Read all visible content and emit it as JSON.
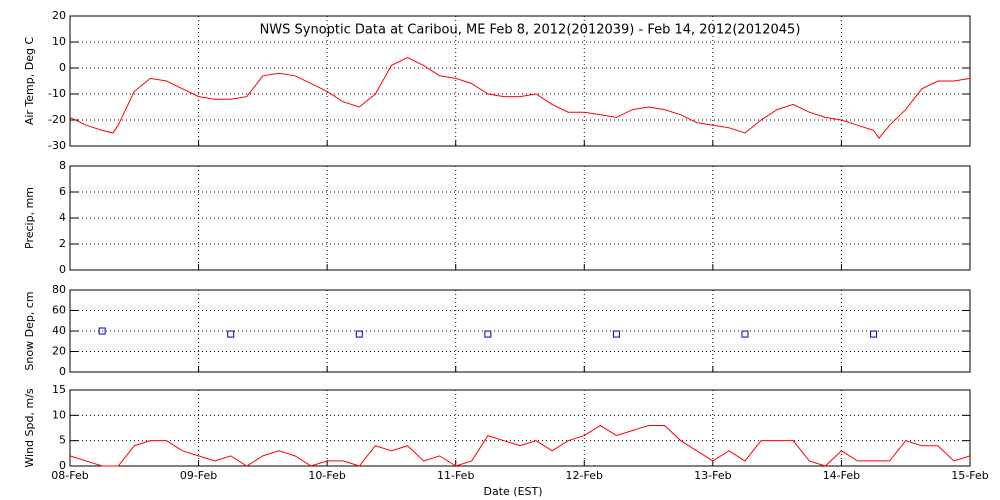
{
  "chart_data": [
    {
      "type": "line",
      "title": "NWS Synoptic Data at Caribou, ME   Feb  8, 2012(2012039) - Feb 14, 2012(2012045)",
      "ylabel": "Air Temp, Deg C",
      "ylim": [
        -30,
        20
      ],
      "yticks": [
        -30,
        -20,
        -10,
        0,
        10,
        20
      ],
      "xlim": [
        0,
        168
      ],
      "grid": true,
      "series": [
        {
          "color": "#ff0000",
          "x": [
            0,
            3,
            6,
            8,
            9,
            12,
            15,
            18,
            21,
            24,
            27,
            30,
            33,
            36,
            39,
            42,
            45,
            48,
            51,
            54,
            57,
            60,
            63,
            66,
            69,
            72,
            75,
            78,
            81,
            84,
            87,
            90,
            93,
            96,
            99,
            102,
            105,
            108,
            111,
            114,
            117,
            120,
            123,
            126,
            129,
            132,
            135,
            138,
            141,
            144,
            147,
            150,
            151,
            153,
            156,
            159,
            162,
            165,
            168
          ],
          "values": [
            -19,
            -22,
            -24,
            -25,
            -22,
            -9,
            -4,
            -5,
            -8,
            -11,
            -12,
            -12,
            -11,
            -3,
            -2,
            -3,
            -6,
            -9,
            -13,
            -15,
            -10,
            1,
            4,
            1,
            -3,
            -4,
            -6,
            -10,
            -11,
            -11,
            -10,
            -14,
            -17,
            -17,
            -18,
            -19,
            -16,
            -15,
            -16,
            -18,
            -21,
            -22,
            -23,
            -25,
            -20,
            -16,
            -14,
            -17,
            -19,
            -20,
            -22,
            -24,
            -27,
            -22,
            -16,
            -8,
            -5,
            -5,
            -4
          ]
        }
      ]
    },
    {
      "type": "line",
      "ylabel": "Precip, mm",
      "ylim": [
        0,
        8
      ],
      "yticks": [
        0,
        2,
        4,
        6,
        8
      ],
      "xlim": [
        0,
        168
      ],
      "grid": true,
      "series": []
    },
    {
      "type": "scatter",
      "ylabel": "Snow Dep, cm",
      "ylim": [
        0,
        80
      ],
      "yticks": [
        0,
        20,
        40,
        60,
        80
      ],
      "xlim": [
        0,
        168
      ],
      "grid": true,
      "series": [
        {
          "color": "#0000aa",
          "x": [
            6,
            30,
            54,
            78,
            102,
            126,
            150
          ],
          "values": [
            40,
            37,
            37,
            37,
            37,
            37,
            37
          ]
        }
      ]
    },
    {
      "type": "line",
      "ylabel": "Wind Spd, m/s",
      "ylim": [
        0,
        15
      ],
      "yticks": [
        0,
        5,
        10,
        15
      ],
      "xlim": [
        0,
        168
      ],
      "grid": true,
      "xlabel": "Date (EST)",
      "xticks": [
        {
          "value": 0,
          "label": "08-Feb"
        },
        {
          "value": 24,
          "label": "09-Feb"
        },
        {
          "value": 48,
          "label": "10-Feb"
        },
        {
          "value": 72,
          "label": "11-Feb"
        },
        {
          "value": 96,
          "label": "12-Feb"
        },
        {
          "value": 120,
          "label": "13-Feb"
        },
        {
          "value": 144,
          "label": "14-Feb"
        },
        {
          "value": 168,
          "label": "15-Feb"
        }
      ],
      "series": [
        {
          "color": "#ff0000",
          "x": [
            0,
            3,
            6,
            9,
            12,
            15,
            18,
            21,
            24,
            27,
            30,
            33,
            36,
            39,
            42,
            45,
            48,
            51,
            54,
            57,
            60,
            63,
            66,
            69,
            72,
            75,
            78,
            81,
            84,
            87,
            90,
            93,
            96,
            99,
            102,
            105,
            108,
            111,
            114,
            117,
            120,
            123,
            126,
            129,
            132,
            135,
            138,
            141,
            144,
            147,
            150,
            153,
            156,
            159,
            162,
            165,
            168
          ],
          "values": [
            2,
            1,
            0,
            0,
            4,
            5,
            5,
            3,
            2,
            1,
            2,
            0,
            2,
            3,
            2,
            0,
            1,
            1,
            0,
            4,
            3,
            4,
            1,
            2,
            0,
            1,
            6,
            5,
            4,
            5,
            3,
            5,
            6,
            8,
            6,
            7,
            8,
            8,
            5,
            3,
            1,
            3,
            1,
            5,
            5,
            5,
            1,
            0,
            3,
            1,
            1,
            1,
            5,
            4,
            4,
            1,
            2
          ]
        }
      ]
    }
  ]
}
